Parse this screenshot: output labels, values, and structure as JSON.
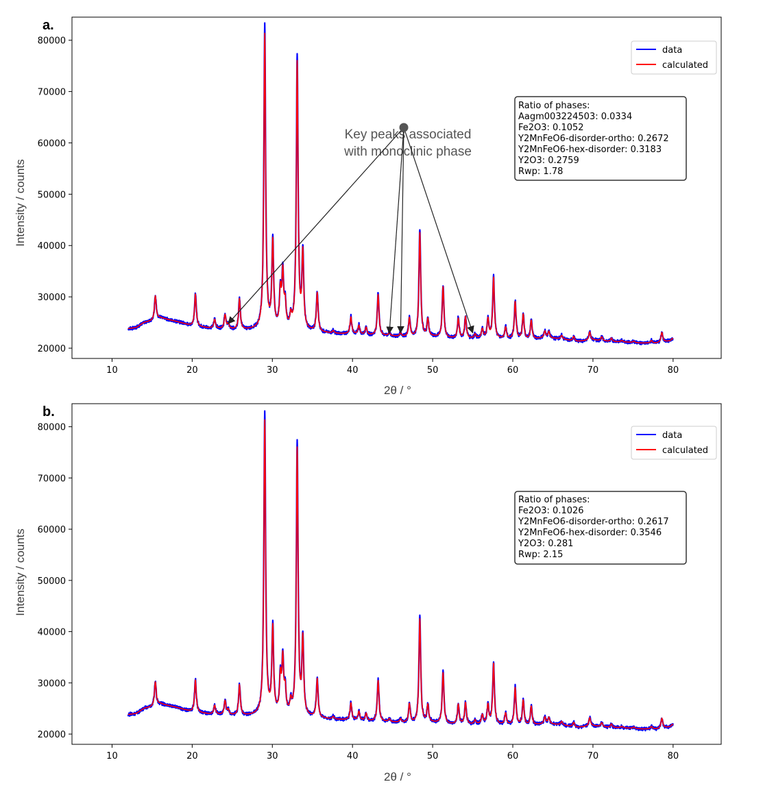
{
  "chart_data": [
    {
      "type": "line",
      "panel_label": "a.",
      "xlabel": "2θ / °",
      "ylabel": "Intensity / counts",
      "xlim": [
        5,
        86
      ],
      "ylim": [
        18000,
        84500
      ],
      "x_ticks": [
        10,
        20,
        30,
        40,
        50,
        60,
        70,
        80
      ],
      "y_ticks": [
        20000,
        30000,
        40000,
        50000,
        60000,
        70000,
        80000
      ],
      "x_range": [
        12,
        80
      ],
      "background": [
        [
          12,
          23800
        ],
        [
          13,
          24000
        ],
        [
          14,
          25000
        ],
        [
          15,
          25300
        ],
        [
          16,
          25900
        ],
        [
          18,
          25200
        ],
        [
          20,
          24300
        ],
        [
          22,
          23900
        ],
        [
          24,
          23700
        ],
        [
          26,
          23500
        ],
        [
          28,
          23600
        ],
        [
          30,
          23800
        ],
        [
          32,
          23500
        ],
        [
          34,
          23300
        ],
        [
          36,
          23000
        ],
        [
          38,
          22800
        ],
        [
          40,
          22700
        ],
        [
          42,
          22500
        ],
        [
          44,
          22400
        ],
        [
          46,
          22200
        ],
        [
          48,
          22000
        ],
        [
          50,
          22200
        ],
        [
          52,
          21900
        ],
        [
          54,
          21800
        ],
        [
          56,
          21900
        ],
        [
          58,
          21800
        ],
        [
          60,
          21700
        ],
        [
          62,
          21600
        ],
        [
          64,
          22000
        ],
        [
          66,
          21800
        ],
        [
          68,
          21300
        ],
        [
          70,
          21600
        ],
        [
          72,
          21300
        ],
        [
          74,
          21200
        ],
        [
          76,
          21000
        ],
        [
          78,
          21000
        ],
        [
          80,
          21500
        ]
      ],
      "peaks": [
        [
          15.4,
          4800
        ],
        [
          20.4,
          6500
        ],
        [
          22.8,
          1800
        ],
        [
          24.1,
          2800
        ],
        [
          24.5,
          1000
        ],
        [
          25.9,
          6200
        ],
        [
          29.05,
          59000
        ],
        [
          30.05,
          17000
        ],
        [
          31.0,
          7000
        ],
        [
          31.3,
          10500
        ],
        [
          31.6,
          4500
        ],
        [
          32.3,
          2300
        ],
        [
          33.1,
          53500
        ],
        [
          33.8,
          15000
        ],
        [
          35.6,
          7800
        ],
        [
          37.6,
          500
        ],
        [
          39.8,
          3400
        ],
        [
          40.8,
          1800
        ],
        [
          41.7,
          1500
        ],
        [
          43.2,
          8200
        ],
        [
          44.6,
          600
        ],
        [
          46.0,
          700
        ],
        [
          47.1,
          3800
        ],
        [
          48.4,
          21000
        ],
        [
          49.4,
          3500
        ],
        [
          51.3,
          10200
        ],
        [
          53.2,
          4000
        ],
        [
          54.1,
          4400
        ],
        [
          55.3,
          800
        ],
        [
          56.2,
          1800
        ],
        [
          56.9,
          3800
        ],
        [
          57.6,
          12200
        ],
        [
          59.1,
          2300
        ],
        [
          60.3,
          7500
        ],
        [
          61.3,
          5000
        ],
        [
          62.3,
          3800
        ],
        [
          64.0,
          1300
        ],
        [
          64.5,
          1300
        ],
        [
          66.1,
          700
        ],
        [
          67.6,
          900
        ],
        [
          69.6,
          1700
        ],
        [
          71.1,
          800
        ],
        [
          72.3,
          700
        ],
        [
          73.6,
          300
        ],
        [
          75.1,
          300
        ],
        [
          77.3,
          500
        ],
        [
          78.6,
          2000
        ],
        [
          79.9,
          400
        ]
      ],
      "series": [
        {
          "name": "data",
          "color": "#0000ff"
        },
        {
          "name": "calculated",
          "color": "#ff0000"
        }
      ],
      "legend_position": "top-right",
      "ratio_box": [
        "Ratio of phases:",
        "Aagm003224503: 0.0334",
        "Fe2O3: 0.1052",
        "Y2MnFeO6-disorder-ortho: 0.2672",
        "Y2MnFeO6-hex-disorder: 0.3183",
        "Y2O3: 0.2759",
        "Rwp: 1.78"
      ],
      "annotation": {
        "lines": [
          "Key peaks associated",
          "with monoclinic phase"
        ],
        "source": [
          46.4,
          63000
        ],
        "targets": [
          [
            24.5,
            24800
          ],
          [
            44.6,
            22900
          ],
          [
            46.0,
            23000
          ],
          [
            55.0,
            23000
          ]
        ]
      }
    },
    {
      "type": "line",
      "panel_label": "b.",
      "xlabel": "2θ / °",
      "ylabel": "Intensity / counts",
      "xlim": [
        5,
        86
      ],
      "ylim": [
        18000,
        84500
      ],
      "x_ticks": [
        10,
        20,
        30,
        40,
        50,
        60,
        70,
        80
      ],
      "y_ticks": [
        20000,
        30000,
        40000,
        50000,
        60000,
        70000,
        80000
      ],
      "x_range": [
        12,
        80
      ],
      "background": [
        [
          12,
          23800
        ],
        [
          13,
          24000
        ],
        [
          14,
          25000
        ],
        [
          15,
          25300
        ],
        [
          16,
          25900
        ],
        [
          18,
          25200
        ],
        [
          20,
          24300
        ],
        [
          22,
          23900
        ],
        [
          24,
          23700
        ],
        [
          26,
          23500
        ],
        [
          28,
          23600
        ],
        [
          30,
          23800
        ],
        [
          32,
          23500
        ],
        [
          34,
          23300
        ],
        [
          36,
          23000
        ],
        [
          38,
          22800
        ],
        [
          40,
          22700
        ],
        [
          42,
          22500
        ],
        [
          44,
          22400
        ],
        [
          46,
          22200
        ],
        [
          48,
          22000
        ],
        [
          50,
          22200
        ],
        [
          52,
          21900
        ],
        [
          54,
          21800
        ],
        [
          56,
          21900
        ],
        [
          58,
          21800
        ],
        [
          60,
          21700
        ],
        [
          62,
          21600
        ],
        [
          64,
          22000
        ],
        [
          66,
          21800
        ],
        [
          68,
          21300
        ],
        [
          70,
          21600
        ],
        [
          72,
          21300
        ],
        [
          74,
          21200
        ],
        [
          76,
          21000
        ],
        [
          78,
          21000
        ],
        [
          80,
          21500
        ]
      ],
      "peaks": [
        [
          15.4,
          4800
        ],
        [
          20.4,
          6500
        ],
        [
          22.8,
          1800
        ],
        [
          24.1,
          2800
        ],
        [
          24.5,
          1000
        ],
        [
          25.9,
          6200
        ],
        [
          29.05,
          59000
        ],
        [
          30.05,
          17000
        ],
        [
          31.0,
          7000
        ],
        [
          31.3,
          10500
        ],
        [
          31.6,
          4500
        ],
        [
          32.3,
          2300
        ],
        [
          33.1,
          53500
        ],
        [
          33.8,
          15000
        ],
        [
          35.6,
          7800
        ],
        [
          37.6,
          500
        ],
        [
          39.8,
          3400
        ],
        [
          40.8,
          1800
        ],
        [
          41.7,
          1500
        ],
        [
          43.2,
          8200
        ],
        [
          44.6,
          600
        ],
        [
          46.0,
          700
        ],
        [
          47.1,
          3800
        ],
        [
          48.4,
          21000
        ],
        [
          49.4,
          3500
        ],
        [
          51.3,
          10200
        ],
        [
          53.2,
          4000
        ],
        [
          54.1,
          4400
        ],
        [
          55.3,
          800
        ],
        [
          56.2,
          1800
        ],
        [
          56.9,
          3800
        ],
        [
          57.6,
          12200
        ],
        [
          59.1,
          2300
        ],
        [
          60.3,
          7500
        ],
        [
          61.3,
          5000
        ],
        [
          62.3,
          3800
        ],
        [
          64.0,
          1300
        ],
        [
          64.5,
          1300
        ],
        [
          66.1,
          700
        ],
        [
          67.6,
          900
        ],
        [
          69.6,
          1700
        ],
        [
          71.1,
          800
        ],
        [
          72.3,
          700
        ],
        [
          73.6,
          300
        ],
        [
          75.1,
          300
        ],
        [
          77.3,
          500
        ],
        [
          78.6,
          2000
        ],
        [
          79.9,
          400
        ]
      ],
      "series": [
        {
          "name": "data",
          "color": "#0000ff"
        },
        {
          "name": "calculated",
          "color": "#ff0000"
        }
      ],
      "legend_position": "top-right",
      "ratio_box": [
        "Ratio of phases:",
        "Fe2O3: 0.1026",
        "Y2MnFeO6-disorder-ortho: 0.2617",
        "Y2MnFeO6-hex-disorder: 0.3546",
        "Y2O3: 0.281",
        "Rwp: 2.15"
      ]
    }
  ]
}
